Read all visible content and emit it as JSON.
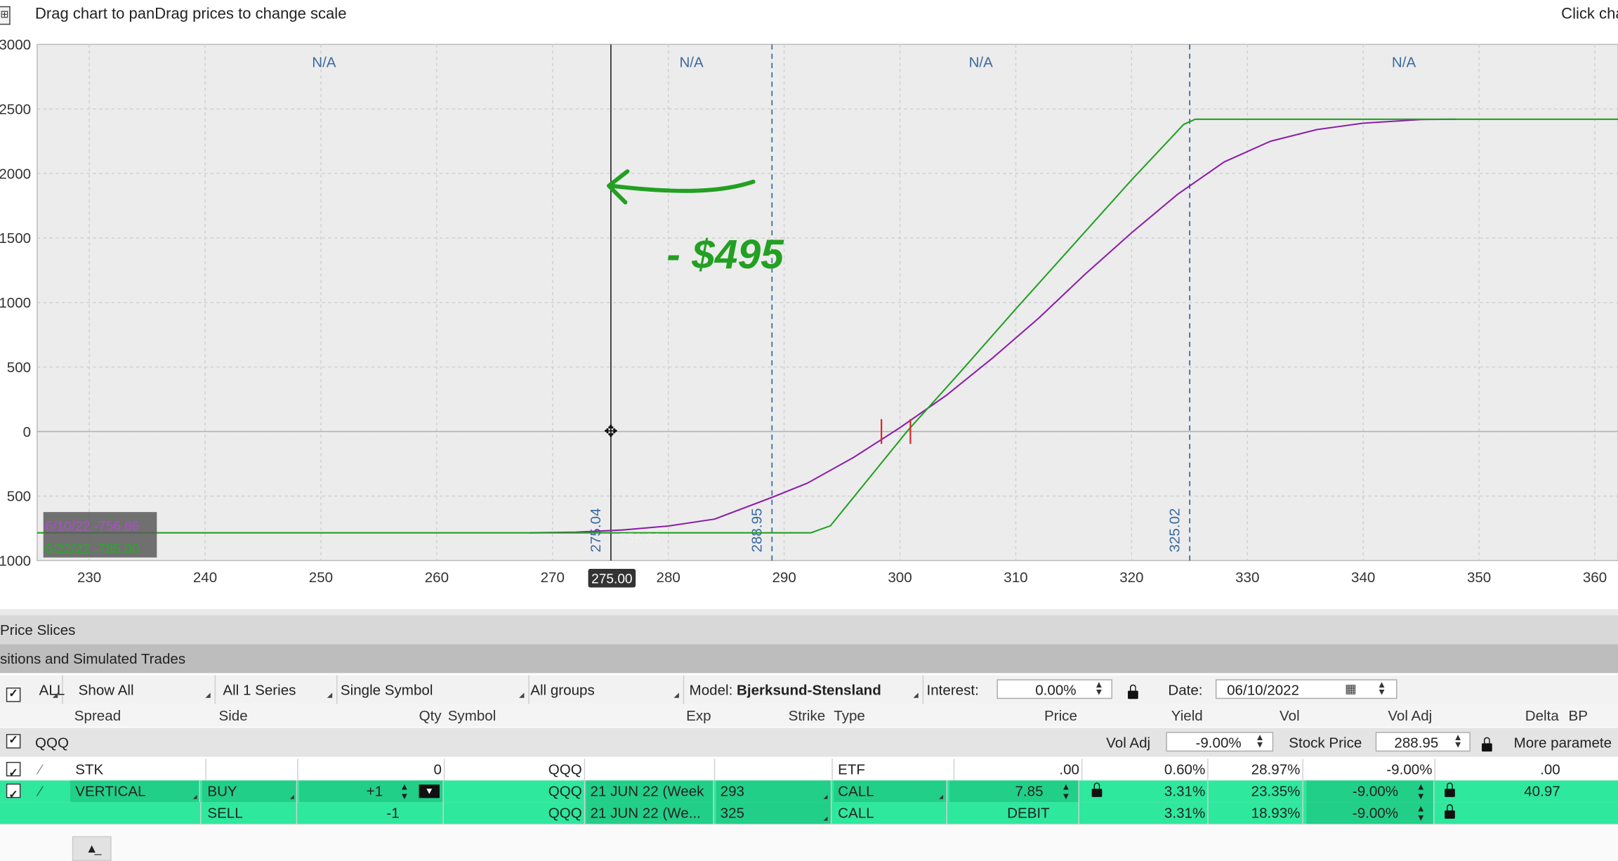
{
  "topbar": {
    "hint": "Drag chart to panDrag prices to change scale",
    "right": "Click cha"
  },
  "chart_data": {
    "type": "line",
    "x_ticks": [
      230,
      240,
      250,
      260,
      270,
      280,
      290,
      300,
      310,
      320,
      330,
      340,
      350,
      360
    ],
    "y_tick_labels": [
      "3000",
      "2500",
      "2000",
      "1500",
      "1000",
      "500",
      "0",
      "500",
      "1000"
    ],
    "y_tick_values": [
      3000,
      2500,
      2000,
      1500,
      1000,
      500,
      0,
      -500,
      -1000
    ],
    "xlim": [
      225.5,
      362
    ],
    "ylim": [
      -1000,
      3000
    ],
    "grid": true,
    "region_labels": [
      "N/A",
      "N/A",
      "N/A",
      "N/A"
    ],
    "series": [
      {
        "color": "#8b1fa8",
        "x": [
          268,
          272,
          276,
          280,
          284,
          288.95,
          292,
          296,
          300,
          304,
          308,
          312,
          316,
          320,
          324,
          328,
          332,
          336,
          340,
          345,
          348
        ],
        "y": [
          -785,
          -780,
          -763,
          -732,
          -678,
          -510,
          -400,
          -200,
          30,
          280,
          570,
          880,
          1220,
          1540,
          1840,
          2090,
          2250,
          2340,
          2390,
          2418,
          2420
        ]
      },
      {
        "color": "#22a022",
        "x": [
          225.5,
          292.3,
          294,
          300.6,
          305,
          310,
          315,
          320,
          324.5,
          325.5,
          362
        ],
        "y": [
          -785,
          -785,
          -730,
          0,
          440,
          950,
          1450,
          1950,
          2380,
          2420,
          2420
        ]
      }
    ],
    "vlines": [
      {
        "x": 275.04,
        "label": "275.04",
        "style": "solid",
        "color": "#333"
      },
      {
        "x": 288.95,
        "label": "288.95",
        "style": "dashed",
        "color": "#3a6aa0"
      },
      {
        "x": 325.02,
        "label": "325.02",
        "style": "dashed",
        "color": "#3a6aa0"
      }
    ],
    "breakeven_marks": [
      298.4,
      300.9
    ],
    "crosshair_label": "275.00",
    "cursor_value": "-756.86",
    "legend": [
      {
        "text": "6/10/22 -756.86",
        "color": "#b04bd0"
      },
      {
        "text": "6/22/22 -785.00",
        "color": "#2aa82a"
      }
    ],
    "annotation": "- $495"
  },
  "sections": {
    "price_slices": "Price Slices",
    "positions": "sitions and Simulated Trades"
  },
  "filter": {
    "all": "ALL",
    "show_all": "Show All",
    "series": "All 1 Series",
    "symbol": "Single Symbol",
    "groups": "All groups",
    "model_label": "Model:",
    "model_value": "Bjerksund-Stensland",
    "interest_label": "Interest:",
    "interest_value": "0.00%",
    "date_label": "Date:",
    "date_value": "06/10/2022"
  },
  "columns": [
    "Spread",
    "Side",
    "Qty",
    "Symbol",
    "Exp",
    "Strike",
    "Type",
    "Price",
    "Yield",
    "Vol",
    "Vol Adj",
    "Delta",
    "BP"
  ],
  "group": {
    "name": "QQQ",
    "vol_adj_label": "Vol Adj",
    "vol_adj_value": "-9.00%",
    "stock_price_label": "Stock Price",
    "stock_price_value": "288.95",
    "more": "More paramete"
  },
  "rows": [
    {
      "spread": "STK",
      "side": "",
      "qty": "0",
      "symbol": "QQQ",
      "exp": "",
      "strike": "",
      "type": "ETF",
      "price": ".00",
      "yield": "0.60%",
      "vol": "28.97%",
      "vol_adj": "-9.00%",
      "delta": ".00"
    },
    {
      "spread": "VERTICAL",
      "side": "BUY",
      "qty": "+1",
      "symbol": "QQQ",
      "exp": "21 JUN 22 (Week",
      "strike": "293",
      "type": "CALL",
      "price": "7.85",
      "yield": "3.31%",
      "vol": "23.35%",
      "vol_adj": "-9.00%",
      "delta": "40.97"
    },
    {
      "spread": "",
      "side": "SELL",
      "qty": "-1",
      "symbol": "QQQ",
      "exp": "21 JUN 22 (We...",
      "strike": "325",
      "type": "CALL",
      "price": "DEBIT",
      "yield": "3.31%",
      "vol": "18.93%",
      "vol_adj": "-9.00%",
      "delta": ""
    }
  ]
}
